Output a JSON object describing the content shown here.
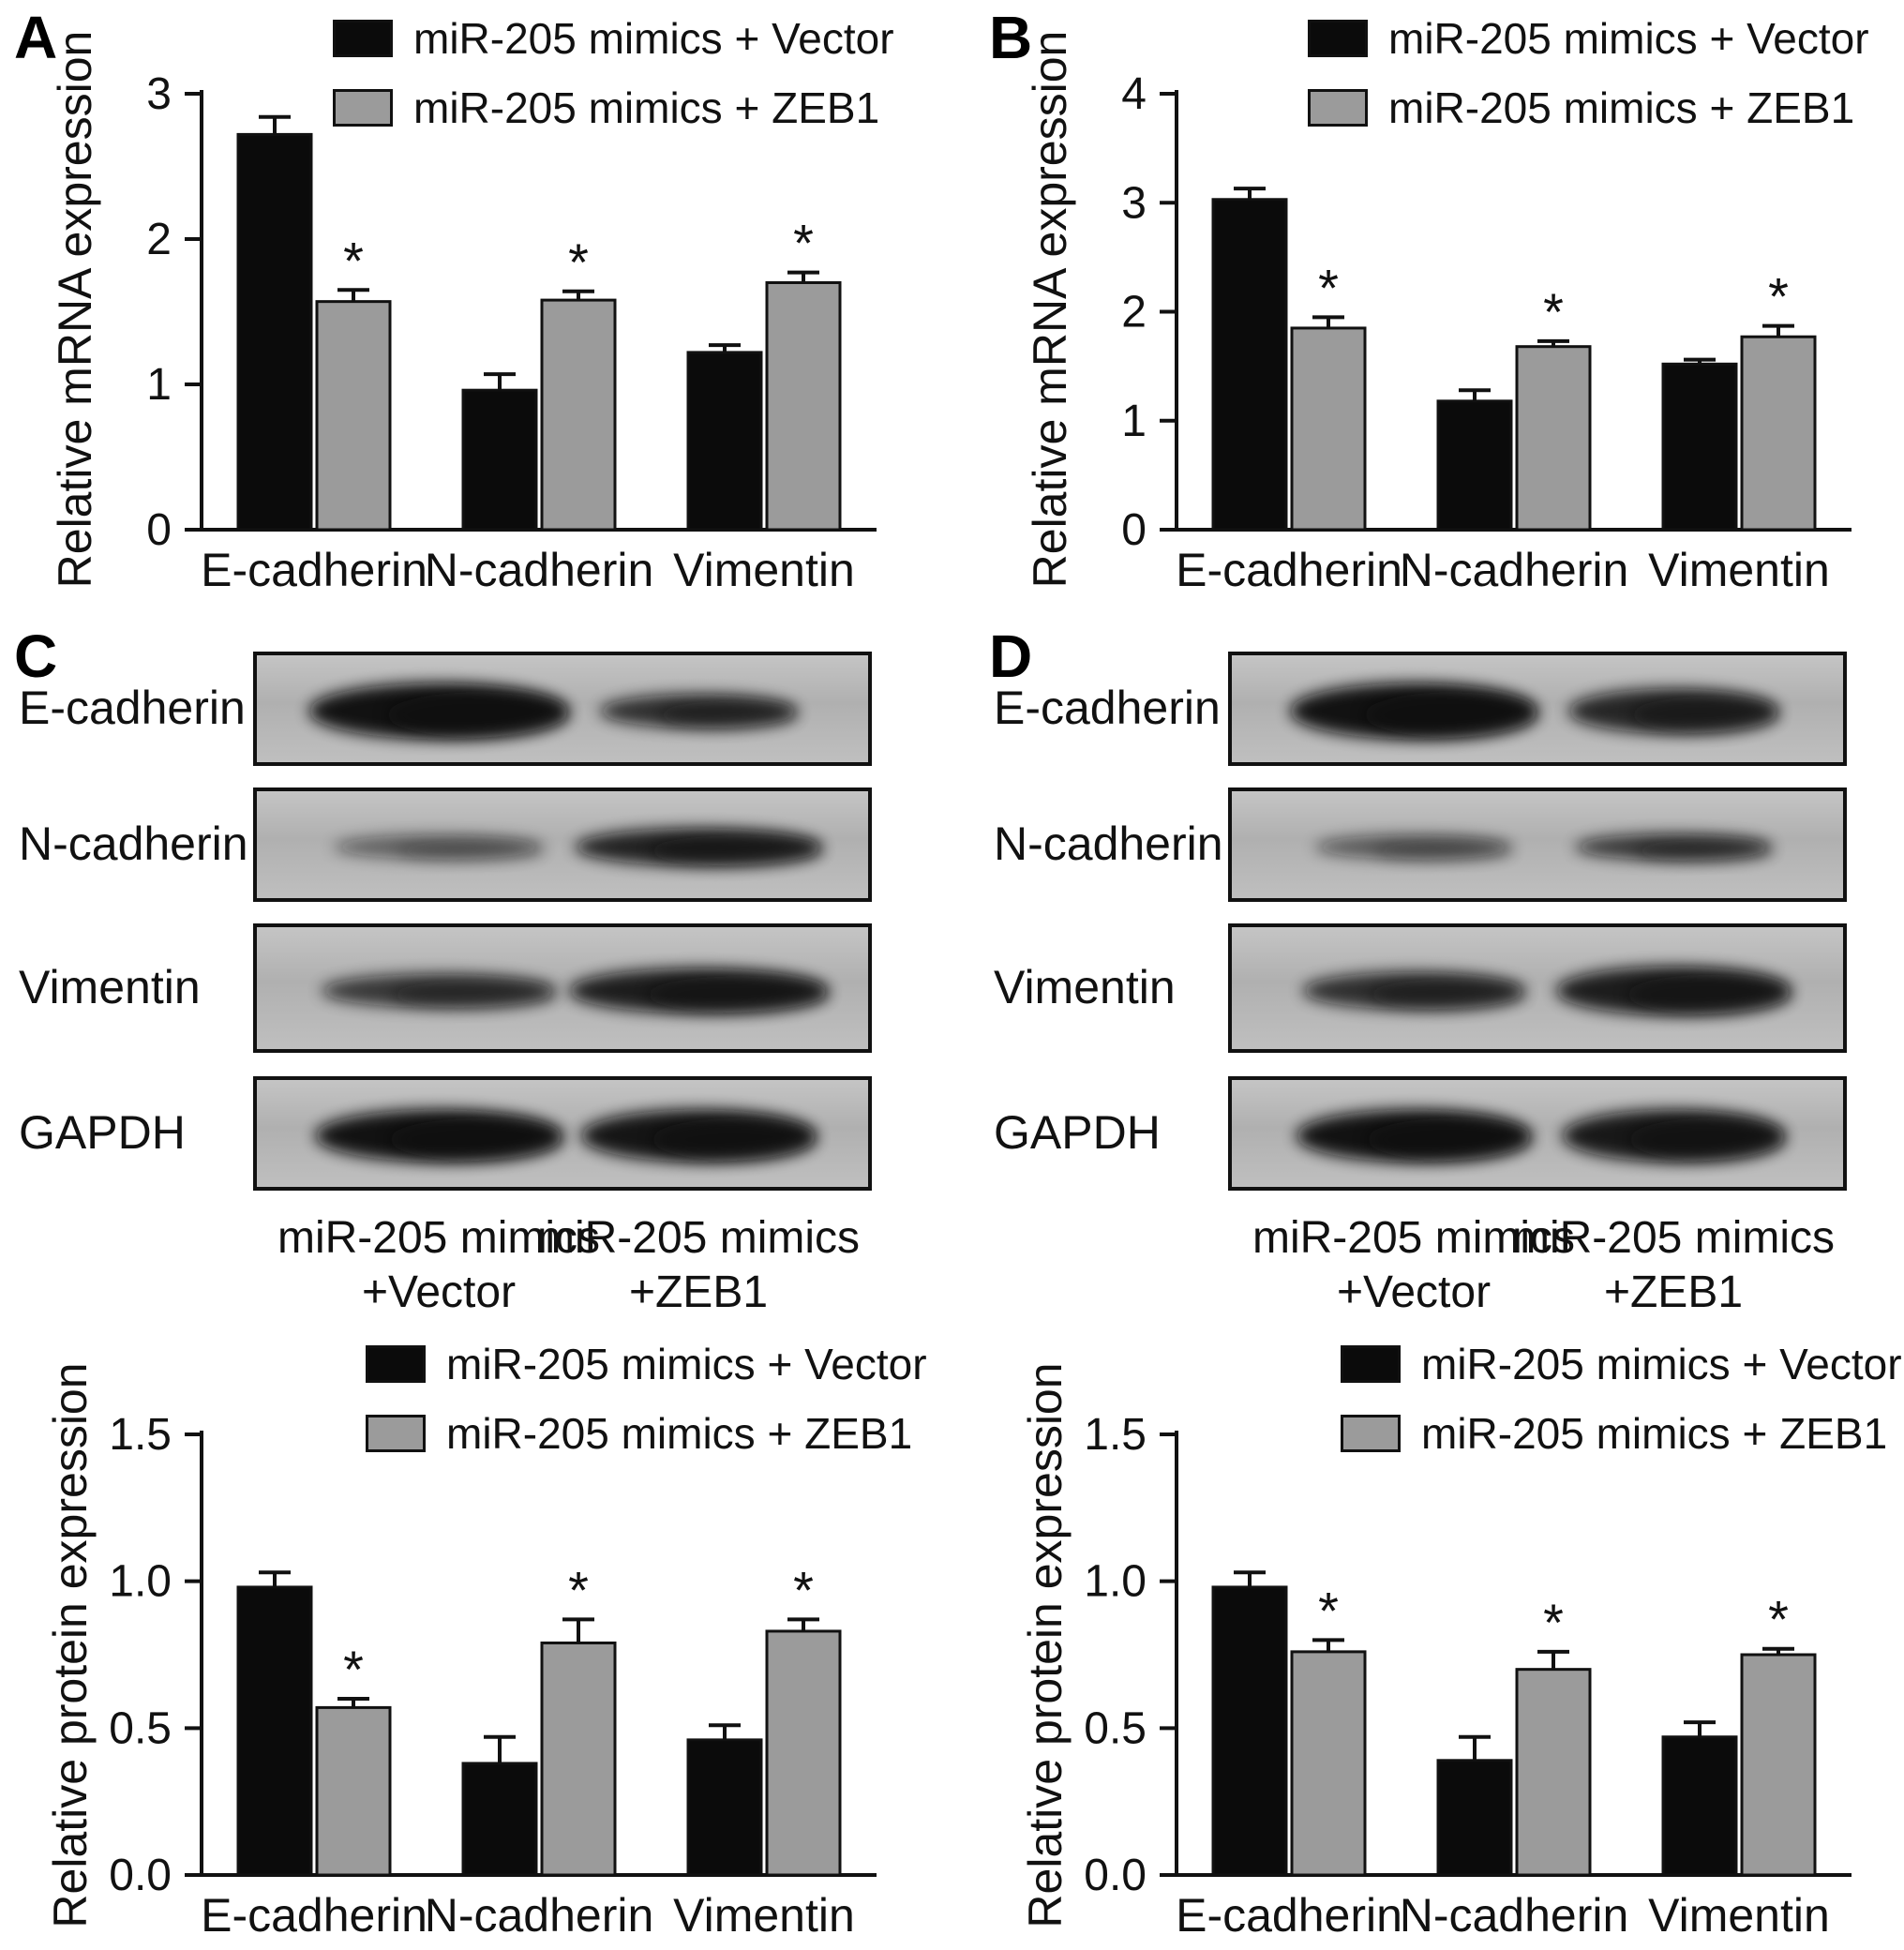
{
  "panels": [
    "A",
    "B",
    "C",
    "D"
  ],
  "legend": {
    "entries": [
      {
        "label": "miR-205 mimics + Vector",
        "color": "#0b0b0b"
      },
      {
        "label": "miR-205 mimics + ZEB1",
        "color": "#9b9b9b"
      }
    ]
  },
  "chart_data": [
    {
      "id": "A",
      "type": "bar",
      "title": "",
      "ylabel": "Relative mRNA expression",
      "xlabel": "",
      "categories": [
        "E-cadherin",
        "N-cadherin",
        "Vimentin"
      ],
      "ylim": [
        0,
        3
      ],
      "yticks": [
        "0",
        "1",
        "2",
        "3"
      ],
      "grid": false,
      "legend_position": "top",
      "series": [
        {
          "name": "miR-205 mimics + Vector",
          "color": "#0b0b0b",
          "values": [
            2.72,
            0.96,
            1.22
          ],
          "errors": [
            0.12,
            0.11,
            0.05
          ],
          "sig": [
            "",
            "",
            ""
          ]
        },
        {
          "name": "miR-205 mimics + ZEB1",
          "color": "#9b9b9b",
          "values": [
            1.57,
            1.58,
            1.7
          ],
          "errors": [
            0.08,
            0.06,
            0.07
          ],
          "sig": [
            "*",
            "*",
            "*"
          ]
        }
      ]
    },
    {
      "id": "B",
      "type": "bar",
      "title": "",
      "ylabel": "Relative mRNA expression",
      "xlabel": "",
      "categories": [
        "E-cadherin",
        "N-cadherin",
        "Vimentin"
      ],
      "ylim": [
        0,
        4
      ],
      "yticks": [
        "0",
        "1",
        "2",
        "3",
        "4"
      ],
      "grid": false,
      "legend_position": "top",
      "series": [
        {
          "name": "miR-205 mimics + Vector",
          "color": "#0b0b0b",
          "values": [
            3.03,
            1.18,
            1.52
          ],
          "errors": [
            0.1,
            0.1,
            0.04
          ],
          "sig": [
            "",
            "",
            ""
          ]
        },
        {
          "name": "miR-205 mimics + ZEB1",
          "color": "#9b9b9b",
          "values": [
            1.85,
            1.68,
            1.77
          ],
          "errors": [
            0.1,
            0.05,
            0.1
          ],
          "sig": [
            "*",
            "*",
            "*"
          ]
        }
      ]
    },
    {
      "id": "C",
      "type": "bar",
      "title": "",
      "ylabel": "Relative protein expression",
      "xlabel": "",
      "categories": [
        "E-cadherin",
        "N-cadherin",
        "Vimentin"
      ],
      "ylim": [
        0,
        1.5
      ],
      "yticks": [
        "0.0",
        "0.5",
        "1.0",
        "1.5"
      ],
      "grid": false,
      "legend_position": "top",
      "series": [
        {
          "name": "miR-205 mimics + Vector",
          "color": "#0b0b0b",
          "values": [
            0.98,
            0.38,
            0.46
          ],
          "errors": [
            0.05,
            0.09,
            0.05
          ],
          "sig": [
            "",
            "",
            ""
          ]
        },
        {
          "name": "miR-205 mimics + ZEB1",
          "color": "#9b9b9b",
          "values": [
            0.57,
            0.79,
            0.83
          ],
          "errors": [
            0.03,
            0.08,
            0.04
          ],
          "sig": [
            "*",
            "*",
            "*"
          ]
        }
      ]
    },
    {
      "id": "D",
      "type": "bar",
      "title": "",
      "ylabel": "Relative protein expression",
      "xlabel": "",
      "categories": [
        "E-cadherin",
        "N-cadherin",
        "Vimentin"
      ],
      "ylim": [
        0,
        1.5
      ],
      "yticks": [
        "0.0",
        "0.5",
        "1.0",
        "1.5"
      ],
      "grid": false,
      "legend_position": "top",
      "series": [
        {
          "name": "miR-205 mimics + Vector",
          "color": "#0b0b0b",
          "values": [
            0.98,
            0.39,
            0.47
          ],
          "errors": [
            0.05,
            0.08,
            0.05
          ],
          "sig": [
            "",
            "",
            ""
          ]
        },
        {
          "name": "miR-205 mimics + ZEB1",
          "color": "#9b9b9b",
          "values": [
            0.76,
            0.7,
            0.75
          ],
          "errors": [
            0.04,
            0.06,
            0.02
          ],
          "sig": [
            "*",
            "*",
            "*"
          ]
        }
      ]
    }
  ],
  "blots": [
    {
      "id": "C",
      "lane_labels": [
        [
          "miR-205 mimics",
          "+Vector"
        ],
        [
          "miR-205 mimics",
          "+ZEB1"
        ]
      ],
      "rows": [
        {
          "label": "E-cadherin",
          "lanes": [
            {
              "intensity": 0.97,
              "rx": 0.21,
              "ry": 30
            },
            {
              "intensity": 0.8,
              "rx": 0.16,
              "ry": 18
            }
          ]
        },
        {
          "label": "N-cadherin",
          "lanes": [
            {
              "intensity": 0.5,
              "rx": 0.17,
              "ry": 13
            },
            {
              "intensity": 0.88,
              "rx": 0.2,
              "ry": 20
            }
          ]
        },
        {
          "label": "Vimentin",
          "lanes": [
            {
              "intensity": 0.75,
              "rx": 0.19,
              "ry": 18
            },
            {
              "intensity": 0.9,
              "rx": 0.21,
              "ry": 24
            }
          ]
        },
        {
          "label": "GAPDH",
          "lanes": [
            {
              "intensity": 0.97,
              "rx": 0.2,
              "ry": 28
            },
            {
              "intensity": 0.95,
              "rx": 0.19,
              "ry": 28
            }
          ]
        }
      ]
    },
    {
      "id": "D",
      "lane_labels": [
        [
          "miR-205 mimics",
          "+Vector"
        ],
        [
          "miR-205 mimics",
          "+ZEB1"
        ]
      ],
      "rows": [
        {
          "label": "E-cadherin",
          "lanes": [
            {
              "intensity": 0.97,
              "rx": 0.2,
              "ry": 30
            },
            {
              "intensity": 0.85,
              "rx": 0.17,
              "ry": 24
            }
          ]
        },
        {
          "label": "N-cadherin",
          "lanes": [
            {
              "intensity": 0.55,
              "rx": 0.16,
              "ry": 13
            },
            {
              "intensity": 0.75,
              "rx": 0.16,
              "ry": 14
            }
          ]
        },
        {
          "label": "Vimentin",
          "lanes": [
            {
              "intensity": 0.8,
              "rx": 0.18,
              "ry": 20
            },
            {
              "intensity": 0.9,
              "rx": 0.19,
              "ry": 26
            }
          ]
        },
        {
          "label": "GAPDH",
          "lanes": [
            {
              "intensity": 0.97,
              "rx": 0.19,
              "ry": 28
            },
            {
              "intensity": 0.93,
              "rx": 0.18,
              "ry": 28
            }
          ]
        }
      ]
    }
  ]
}
